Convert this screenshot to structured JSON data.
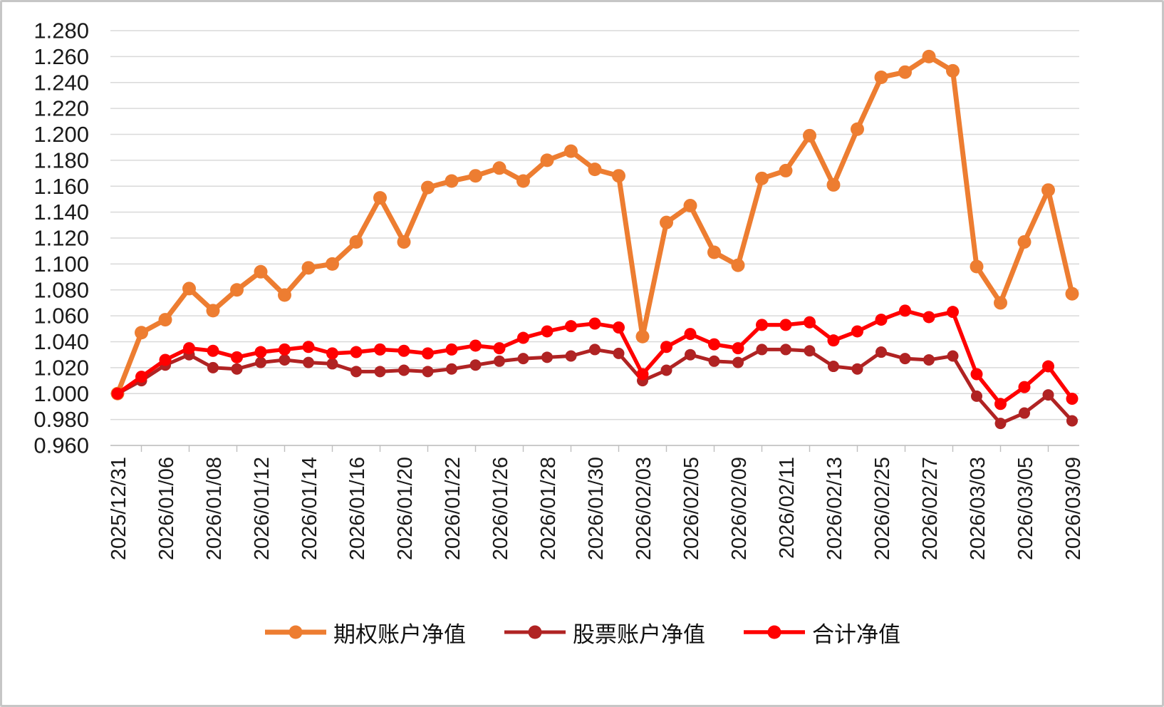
{
  "frame": {
    "background": "#ffffff",
    "border_color": "#c6c6c6"
  },
  "chart_data": {
    "type": "line",
    "title": "",
    "grid": "horizontal-only",
    "gridline_color": "#d9d9d9",
    "axis_color": "#bfbfbf",
    "label_color": "#1a1a1a",
    "legend_position": "bottom-center",
    "points_per_label": 2,
    "x_tick_labels": [
      "2025/12/31",
      "2026/01/06",
      "2026/01/08",
      "2026/01/12",
      "2026/01/14",
      "2026/01/16",
      "2026/01/20",
      "2026/01/22",
      "2026/01/26",
      "2026/01/28",
      "2026/01/30",
      "2026/02/03",
      "2026/02/05",
      "2026/02/09",
      "2026/02/11",
      "2026/02/13",
      "2026/02/25",
      "2026/02/27",
      "2026/03/03",
      "2026/03/05",
      "2026/03/09"
    ],
    "y_axis": {
      "min": 0.96,
      "max": 1.28,
      "step": 0.02,
      "tick_labels": [
        "1.280",
        "1.260",
        "1.240",
        "1.220",
        "1.200",
        "1.180",
        "1.160",
        "1.140",
        "1.120",
        "1.100",
        "1.080",
        "1.060",
        "1.040",
        "1.020",
        "1.000",
        "0.980",
        "0.960"
      ]
    },
    "series": [
      {
        "name": "期权账户净值",
        "color": "#ED7D31",
        "values": [
          1.0,
          1.047,
          1.057,
          1.081,
          1.064,
          1.08,
          1.094,
          1.076,
          1.097,
          1.1,
          1.117,
          1.151,
          1.117,
          1.159,
          1.164,
          1.168,
          1.174,
          1.164,
          1.18,
          1.187,
          1.173,
          1.168,
          1.044,
          1.132,
          1.145,
          1.109,
          1.099,
          1.166,
          1.172,
          1.199,
          1.161,
          1.204,
          1.244,
          1.248,
          1.26,
          1.249,
          1.098,
          1.07,
          1.117,
          1.157,
          1.077
        ]
      },
      {
        "name": "股票账户净值",
        "color": "#B02323",
        "values": [
          1.0,
          1.01,
          1.022,
          1.03,
          1.02,
          1.019,
          1.024,
          1.026,
          1.024,
          1.023,
          1.017,
          1.017,
          1.018,
          1.017,
          1.019,
          1.022,
          1.025,
          1.027,
          1.028,
          1.029,
          1.034,
          1.031,
          1.01,
          1.018,
          1.03,
          1.025,
          1.024,
          1.034,
          1.034,
          1.033,
          1.021,
          1.019,
          1.032,
          1.027,
          1.026,
          1.029,
          0.998,
          0.977,
          0.985,
          0.999,
          0.979
        ]
      },
      {
        "name": "合计净值",
        "color": "#FF0000",
        "values": [
          1.0,
          1.013,
          1.026,
          1.035,
          1.033,
          1.028,
          1.032,
          1.034,
          1.036,
          1.031,
          1.032,
          1.034,
          1.033,
          1.031,
          1.034,
          1.037,
          1.035,
          1.043,
          1.048,
          1.052,
          1.054,
          1.051,
          1.015,
          1.036,
          1.046,
          1.038,
          1.035,
          1.053,
          1.053,
          1.055,
          1.041,
          1.048,
          1.057,
          1.064,
          1.059,
          1.063,
          1.015,
          0.992,
          1.005,
          1.021,
          0.996
        ]
      }
    ]
  }
}
